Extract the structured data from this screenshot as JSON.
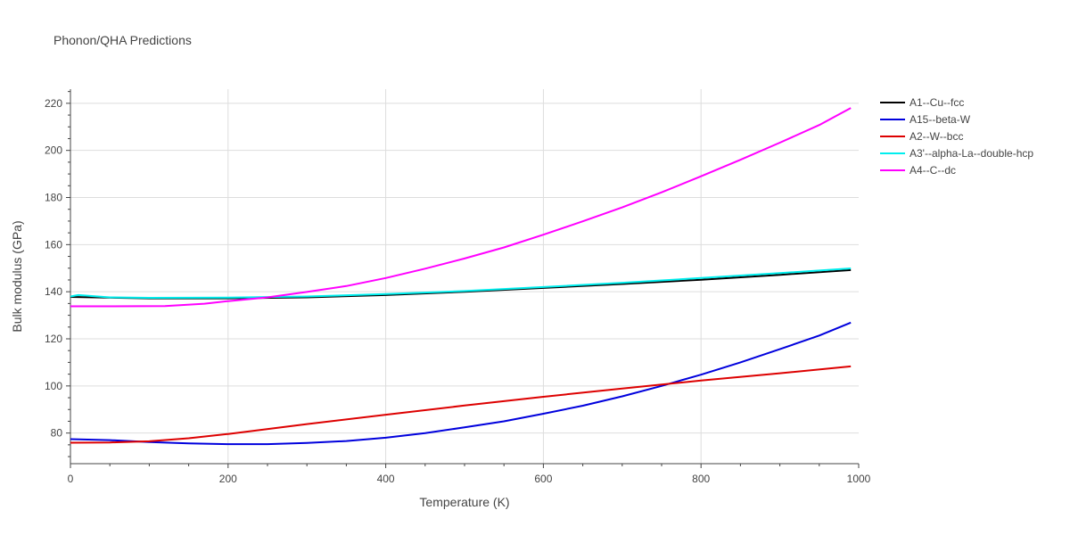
{
  "chart_data": {
    "type": "line",
    "title": "Phonon/QHA Predictions",
    "xlabel": "Temperature (K)",
    "ylabel": "Bulk modulus (GPa)",
    "xlim": [
      0,
      1000
    ],
    "ylim": [
      67,
      226
    ],
    "xticks": [
      0,
      200,
      400,
      600,
      800,
      1000
    ],
    "yticks": [
      80,
      100,
      120,
      140,
      160,
      180,
      200,
      220
    ],
    "grid": true,
    "legend_position": "top-right",
    "series": [
      {
        "name": "A1--Cu--fcc",
        "color": "#000000",
        "x": [
          0,
          100,
          200,
          300,
          400,
          500,
          600,
          700,
          800,
          900,
          990
        ],
        "y": [
          137.8,
          137.2,
          137.2,
          137.6,
          138.6,
          140.0,
          141.6,
          143.3,
          145.1,
          147.2,
          149.2
        ]
      },
      {
        "name": "A15--beta-W",
        "color": "#0000dd",
        "x": [
          0,
          50,
          100,
          150,
          200,
          250,
          300,
          350,
          400,
          450,
          500,
          550,
          600,
          650,
          700,
          750,
          800,
          850,
          900,
          950,
          990
        ],
        "y": [
          77.4,
          77.0,
          76.2,
          75.6,
          75.3,
          75.3,
          75.8,
          76.6,
          78.0,
          80.0,
          82.4,
          85.0,
          88.2,
          91.6,
          95.6,
          100.0,
          104.8,
          110.0,
          115.6,
          121.4,
          126.9
        ]
      },
      {
        "name": "A2--W--bcc",
        "color": "#dd0000",
        "x": [
          0,
          50,
          100,
          150,
          200,
          300,
          400,
          500,
          600,
          700,
          800,
          900,
          990
        ],
        "y": [
          75.9,
          76.0,
          76.5,
          77.8,
          79.6,
          83.8,
          87.8,
          91.7,
          95.4,
          98.9,
          102.3,
          105.4,
          108.3
        ]
      },
      {
        "name": "A3'--alpha-La--double-hcp",
        "color": "#00eeee",
        "x": [
          0,
          10,
          50,
          100,
          200,
          300,
          400,
          500,
          600,
          700,
          800,
          900,
          990
        ],
        "y": [
          138.0,
          138.6,
          137.6,
          137.4,
          137.5,
          138.0,
          139.0,
          140.3,
          142.0,
          143.8,
          145.8,
          147.9,
          149.9
        ]
      },
      {
        "name": "A4--C--dc",
        "color": "#ff00ff",
        "x": [
          0,
          50,
          120,
          170,
          200,
          250,
          300,
          350,
          400,
          450,
          500,
          550,
          600,
          650,
          700,
          750,
          800,
          850,
          900,
          950,
          990
        ],
        "y": [
          133.8,
          133.8,
          133.9,
          134.9,
          136.0,
          137.6,
          139.9,
          142.4,
          145.8,
          149.8,
          154.1,
          158.8,
          164.2,
          169.9,
          175.8,
          182.2,
          189.0,
          196.0,
          203.3,
          210.8,
          218.0
        ]
      }
    ]
  }
}
